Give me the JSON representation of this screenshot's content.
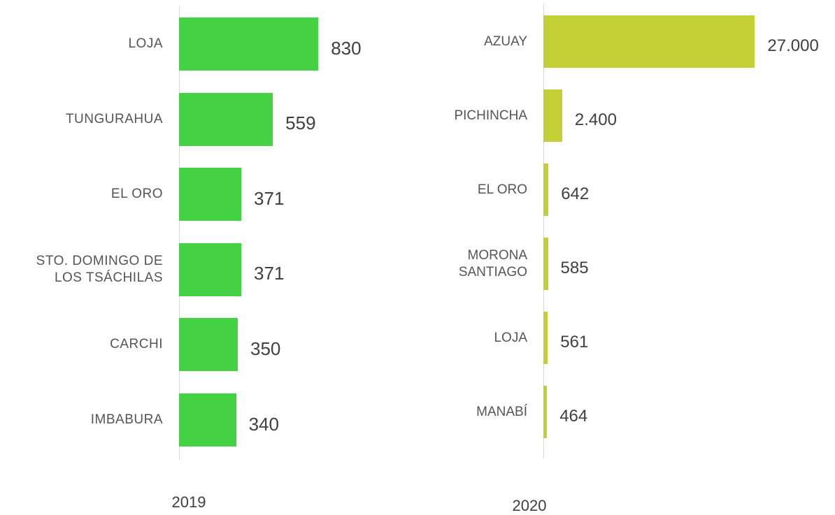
{
  "chart_data": [
    {
      "type": "barh",
      "xlabel": "2019",
      "color": "#44d244",
      "xlim": [
        0,
        1000
      ],
      "categories": [
        "LOJA",
        "TUNGURAHUA",
        "EL ORO",
        "STO. DOMINGO DE\nLOS TSÁCHILAS",
        "CARCHI",
        "IMBABURA"
      ],
      "values": [
        830,
        559,
        371,
        371,
        350,
        340
      ]
    },
    {
      "type": "barh",
      "xlabel": "2020",
      "color": "#c3d035",
      "xlim": [
        0,
        30000
      ],
      "categories": [
        "AZUAY",
        "PICHINCHA",
        "EL ORO",
        "MORONA\nSANTIAGO",
        "LOJA",
        "MANABÍ"
      ],
      "values": [
        27000,
        2400,
        642,
        585,
        561,
        464
      ],
      "value_labels": [
        "27.000",
        "2.400",
        "642",
        "585",
        "561",
        "464"
      ]
    }
  ]
}
